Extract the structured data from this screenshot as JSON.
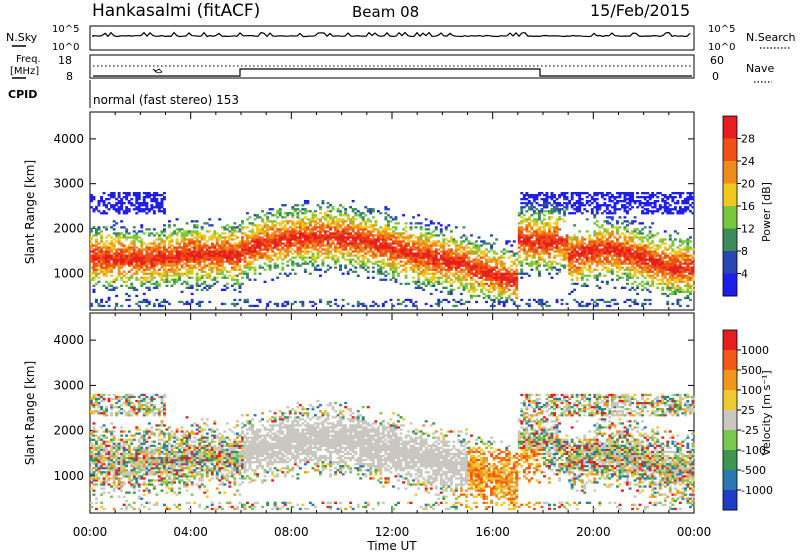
{
  "header": {
    "station": "Hankasalmi (fitACF)",
    "beam": "Beam 08",
    "date": "15/Feb/2015"
  },
  "panels": {
    "nsky_label": "N.Sky",
    "nsearch_label": "N.Search",
    "nsky_ticks": [
      "10^5",
      "10^0"
    ],
    "nsearch_ticks": [
      "10^5",
      "10^0"
    ],
    "freq_label_1": "Freq.",
    "freq_label_2": "[MHz]",
    "freq_ticks": [
      "18",
      "8"
    ],
    "nave_label": "Nave",
    "nave_ticks": [
      "60",
      "0"
    ],
    "cpid_label": "CPID",
    "cpid_text": "normal (fast stereo) 153"
  },
  "chart_data": [
    {
      "type": "heatmap",
      "name": "power",
      "ylabel": "Slant Range [km]",
      "xlabel": "Time UT",
      "x_ticks": [
        "00:00",
        "04:00",
        "08:00",
        "12:00",
        "16:00",
        "20:00",
        "00:00"
      ],
      "y_ticks": [
        1000,
        2000,
        3000,
        4000
      ],
      "ylim": [
        180,
        4600
      ],
      "xlim_hours": [
        0,
        24
      ],
      "colorbar_label": "Power [dB]",
      "colorbar_ticks": [
        "4",
        "8",
        "12",
        "16",
        "20",
        "24",
        "28"
      ],
      "colorbar_colors": [
        "#1e1ee6",
        "#2846b4",
        "#3c8c5a",
        "#78c83c",
        "#f0c81e",
        "#f08c1e",
        "#f05014",
        "#e61e1e"
      ]
    },
    {
      "type": "heatmap",
      "name": "velocity",
      "ylabel": "Slant Range [km]",
      "xlabel": "Time UT",
      "x_ticks": [
        "00:00",
        "04:00",
        "08:00",
        "12:00",
        "16:00",
        "20:00",
        "00:00"
      ],
      "y_ticks": [
        1000,
        2000,
        3000,
        4000
      ],
      "ylim": [
        180,
        4600
      ],
      "xlim_hours": [
        0,
        24
      ],
      "colorbar_label": "Velocity [m s⁻¹]",
      "colorbar_ticks": [
        "1000",
        "500",
        "100",
        "25",
        "-25",
        "-100",
        "-500",
        "-1000"
      ],
      "colorbar_colors": [
        "#1e3cc8",
        "#2878b4",
        "#3c9650",
        "#78c850",
        "#c8c8c0",
        "#f0c832",
        "#f0961e",
        "#f05a14",
        "#e61e1e"
      ]
    }
  ],
  "x_axis_title": "Time UT",
  "x_tick_labels": [
    "00:00",
    "04:00",
    "08:00",
    "12:00",
    "16:00",
    "20:00",
    "00:00"
  ]
}
